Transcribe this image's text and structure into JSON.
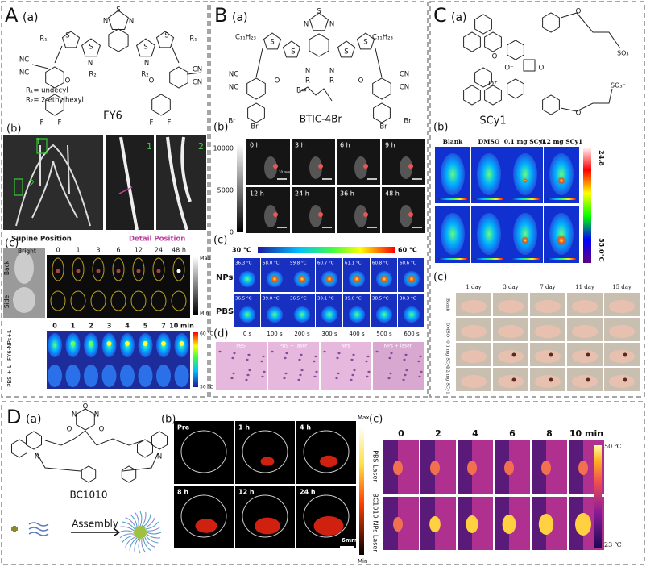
{
  "panel_a": {
    "label": "A",
    "sub_a": "(a)",
    "compound": "FY6",
    "r1": "R₁= undecyl",
    "r2": "R₂= 2-ethylhexyl",
    "atoms": [
      "S",
      "N",
      "N",
      "S",
      "S",
      "S",
      "S",
      "N",
      "N",
      "R₁",
      "R₁",
      "R₂",
      "R₂",
      "NC",
      "NC",
      "CN",
      "CN",
      "O",
      "O",
      "F",
      "F",
      "F",
      "F"
    ],
    "sub_b": "(b)",
    "region_labels": [
      "1",
      "2",
      "1",
      "2"
    ],
    "supine": "Supine Position",
    "detail": "Detail Position",
    "sub_c": "(c)",
    "bright": "Bright",
    "views": [
      "Back",
      "Side"
    ],
    "times_hours": [
      "0",
      "1",
      "3",
      "6",
      "12",
      "24",
      "48 h"
    ],
    "scale_max": "Max",
    "scale_min": "Min",
    "times_minutes": [
      "0",
      "1",
      "2",
      "3",
      "4",
      "5",
      "7",
      "10 min"
    ],
    "groups": [
      "FY6-NPs+L",
      "PBS + L"
    ],
    "temp_max": "60 °C",
    "temp_min": "30 °C"
  },
  "panel_b": {
    "label": "B",
    "sub_a": "(a)",
    "compound": "BTIC-4Br",
    "alkyl": [
      "C₁₁H₂₃",
      "C₁₁H₂₃"
    ],
    "r_def": "R=",
    "atoms": [
      "S",
      "N",
      "N",
      "S",
      "S",
      "S",
      "S",
      "N",
      "N",
      "R",
      "R",
      "NC",
      "NC",
      "CN",
      "CN",
      "O",
      "O",
      "Br",
      "Br",
      "Br",
      "Br"
    ],
    "sub_b": "(b)",
    "intensity_labels": [
      "10000",
      "5000",
      "0"
    ],
    "times": [
      "0 h",
      "3 h",
      "6 h",
      "9 h",
      "12 h",
      "24 h",
      "36 h",
      "48 h"
    ],
    "scale_bar": "10 mm",
    "sub_c": "(c)",
    "temp_min": "30 °C",
    "temp_max": "60 °C",
    "groups": [
      "NPs",
      "PBS"
    ],
    "nps_temps": [
      "36.3 °C",
      "58.0 °C",
      "59.8 °C",
      "60.7 °C",
      "61.1 °C",
      "60.8 °C",
      "60.6 °C"
    ],
    "pbs_temps": [
      "36.5 °C",
      "39.0 °C",
      "36.5 °C",
      "39.1 °C",
      "39.0 °C",
      "38.5 °C",
      "38.3 °C"
    ],
    "times_s": [
      "0 s",
      "100 s",
      "200 s",
      "300 s",
      "400 s",
      "500 s",
      "600 s"
    ],
    "sub_d": "(d)",
    "histology": [
      "PBS",
      "PBS + laser",
      "NPs",
      "NPs + laser"
    ]
  },
  "panel_c": {
    "label": "C",
    "sub_a": "(a)",
    "compound": "SCy1",
    "atoms": [
      "O",
      "O",
      "O⁻",
      "O",
      "O⁺",
      "O"
    ],
    "sulfonates": [
      "SO₃⁻",
      "SO₃⁻"
    ],
    "sub_b": "(b)",
    "headers": [
      "Blank",
      "DMSO",
      "0.1 mg SCy1",
      "0.2 mg SCy1"
    ],
    "temp_min": "24.8",
    "temp_max": "55.0°C",
    "sub_c": "(c)",
    "days": [
      "1 day",
      "3 day",
      "7 day",
      "11 day",
      "15 day"
    ],
    "rows": [
      "Blank",
      "DMSO",
      "0.1 mg SCy1",
      "0.2 mg SCy1"
    ]
  },
  "panel_d": {
    "label": "D",
    "sub_a": "(a)",
    "compound": "BC1010",
    "atoms": [
      "O",
      "N",
      "N",
      "O",
      "O",
      "N",
      "N"
    ],
    "assembly": "Assembly",
    "sub_b": "(b)",
    "times": [
      "Pre",
      "1 h",
      "4 h",
      "8 h",
      "12 h",
      "24 h"
    ],
    "scale_max": "Max",
    "scale_min": "Min",
    "scale_bar": "6mm",
    "sub_c": "(c)",
    "times_min": [
      "0",
      "2",
      "4",
      "6",
      "8",
      "10 min"
    ],
    "rows": [
      "PBS Laser",
      "BC1010-NPs Laser"
    ],
    "temp_max": "50 ℃",
    "temp_min": "23 ℃"
  }
}
